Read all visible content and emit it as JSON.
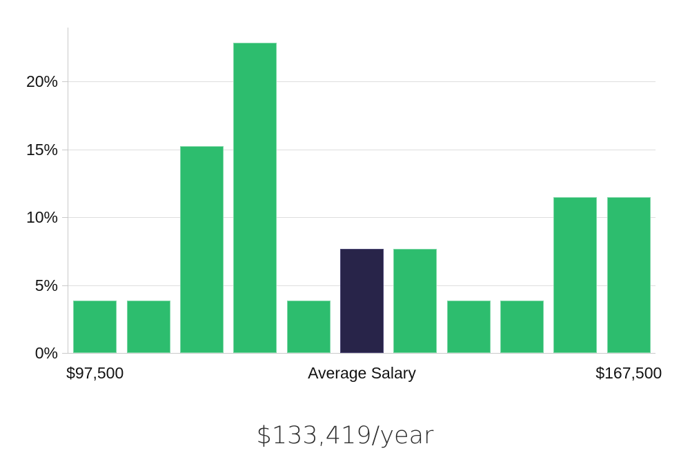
{
  "chart_data": {
    "type": "bar",
    "subtype": "histogram",
    "title": "$133,419/year",
    "xlabel": "",
    "ylabel": "",
    "categories": [
      "bin-1",
      "bin-2",
      "bin-3",
      "bin-4",
      "bin-5",
      "bin-6-average",
      "bin-7",
      "bin-8",
      "bin-9",
      "bin-10",
      "bin-11"
    ],
    "values": [
      3.85,
      3.85,
      15.25,
      22.85,
      3.85,
      7.65,
      7.65,
      3.85,
      3.85,
      11.45,
      11.45
    ],
    "value_unit": "%",
    "highlight_index": 5,
    "y_ticks": [
      {
        "value": 0,
        "label": "0%"
      },
      {
        "value": 5,
        "label": "5%"
      },
      {
        "value": 10,
        "label": "10%"
      },
      {
        "value": 15,
        "label": "15%"
      },
      {
        "value": 20,
        "label": "20%"
      }
    ],
    "x_labels": [
      {
        "text": "$97,500",
        "bar_index": 0
      },
      {
        "text": "Average Salary",
        "bar_index": 5
      },
      {
        "text": "$167,500",
        "bar_index": 10
      }
    ],
    "ylim": [
      0,
      23.95
    ],
    "grid": "horizontal",
    "legend": "none",
    "colors": {
      "bar": "#2dbd6e",
      "bar_border": "#7fd7a7",
      "highlight_bar": "#282449",
      "highlight_border": "#4c4776",
      "gridline": "#dedede",
      "axis": "#c9c9c9",
      "tick_text": "#121212",
      "title_text": "#2e2e2e"
    }
  }
}
